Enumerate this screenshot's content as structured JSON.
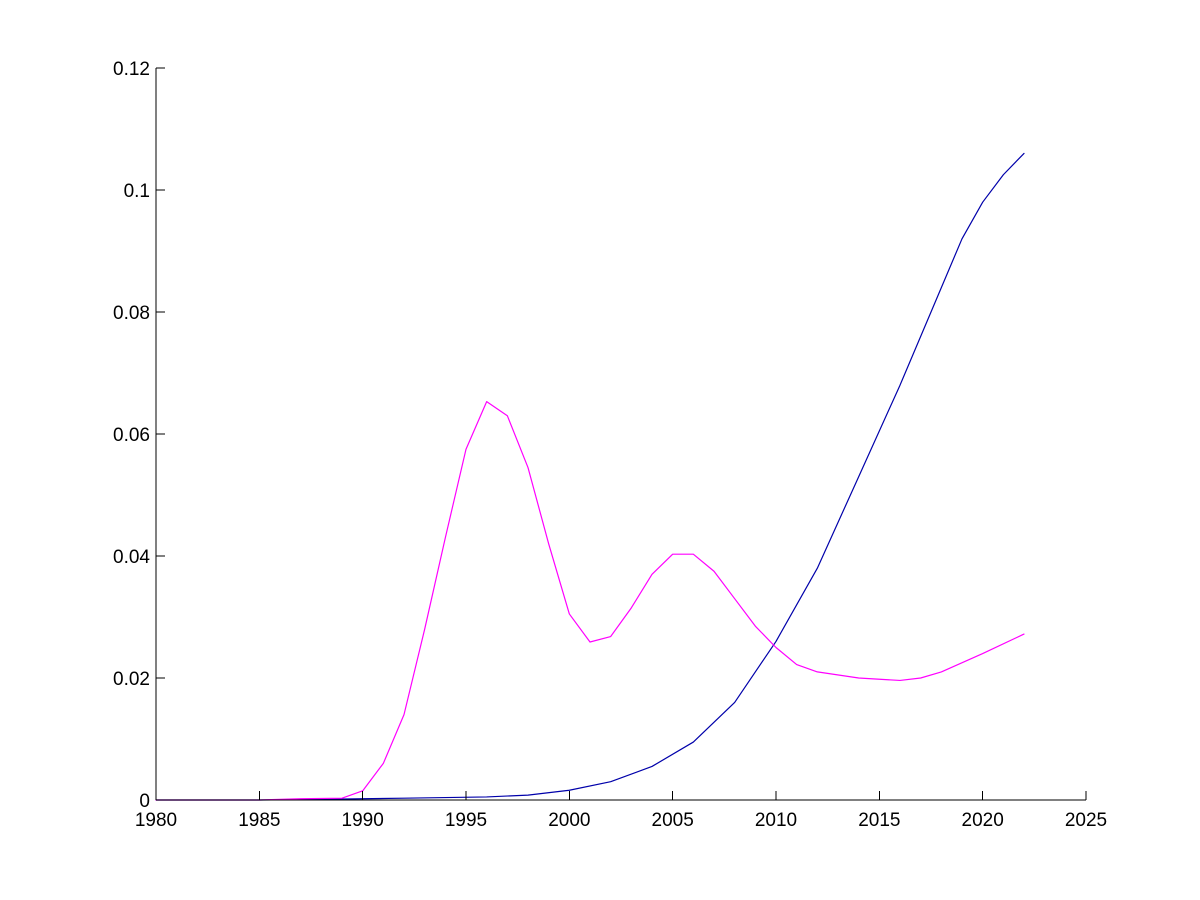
{
  "chart_data": {
    "type": "line",
    "title": "",
    "xlabel": "",
    "ylabel": "",
    "xlim": [
      1980,
      2025
    ],
    "ylim": [
      0,
      0.12
    ],
    "grid": false,
    "legend": "none",
    "x_ticks": [
      1980,
      1985,
      1990,
      1995,
      2000,
      2005,
      2010,
      2015,
      2020,
      2025
    ],
    "x_tick_labels": [
      "1980",
      "1985",
      "1990",
      "1995",
      "2000",
      "2005",
      "2010",
      "2015",
      "2020",
      "2025"
    ],
    "y_ticks": [
      0,
      0.02,
      0.04,
      0.06,
      0.08,
      0.1,
      0.12
    ],
    "y_tick_labels": [
      "0",
      "0.02",
      "0.04",
      "0.06",
      "0.08",
      "0.1",
      "0.12"
    ],
    "series": [
      {
        "color": "#0000aa",
        "points": [
          [
            1980,
            0.0
          ],
          [
            1985,
            0.0
          ],
          [
            1988,
            0.0001
          ],
          [
            1990,
            0.0002
          ],
          [
            1992,
            0.0003
          ],
          [
            1994,
            0.0004
          ],
          [
            1996,
            0.0005
          ],
          [
            1998,
            0.0008
          ],
          [
            2000,
            0.0016
          ],
          [
            2002,
            0.003
          ],
          [
            2004,
            0.0055
          ],
          [
            2006,
            0.0095
          ],
          [
            2008,
            0.016
          ],
          [
            2010,
            0.026
          ],
          [
            2012,
            0.038
          ],
          [
            2014,
            0.053
          ],
          [
            2016,
            0.068
          ],
          [
            2018,
            0.084
          ],
          [
            2019,
            0.092
          ],
          [
            2020,
            0.098
          ],
          [
            2021,
            0.1025
          ],
          [
            2022,
            0.106
          ]
        ]
      },
      {
        "color": "#ff00ff",
        "points": [
          [
            1980,
            0.0
          ],
          [
            1985,
            0.0
          ],
          [
            1987,
            0.0002
          ],
          [
            1989,
            0.0003
          ],
          [
            1990,
            0.0015
          ],
          [
            1991,
            0.006
          ],
          [
            1992,
            0.014
          ],
          [
            1993,
            0.028
          ],
          [
            1994,
            0.043
          ],
          [
            1995,
            0.0575
          ],
          [
            1996,
            0.0653
          ],
          [
            1997,
            0.063
          ],
          [
            1998,
            0.0545
          ],
          [
            1999,
            0.042
          ],
          [
            2000,
            0.0305
          ],
          [
            2001,
            0.0259
          ],
          [
            2002,
            0.0268
          ],
          [
            2003,
            0.0315
          ],
          [
            2004,
            0.037
          ],
          [
            2005,
            0.0403
          ],
          [
            2006,
            0.0403
          ],
          [
            2007,
            0.0375
          ],
          [
            2008,
            0.033
          ],
          [
            2009,
            0.0285
          ],
          [
            2010,
            0.025
          ],
          [
            2011,
            0.0222
          ],
          [
            2012,
            0.021
          ],
          [
            2014,
            0.02
          ],
          [
            2016,
            0.0196
          ],
          [
            2017,
            0.02
          ],
          [
            2018,
            0.021
          ],
          [
            2020,
            0.024
          ],
          [
            2022,
            0.0272
          ]
        ]
      }
    ]
  }
}
